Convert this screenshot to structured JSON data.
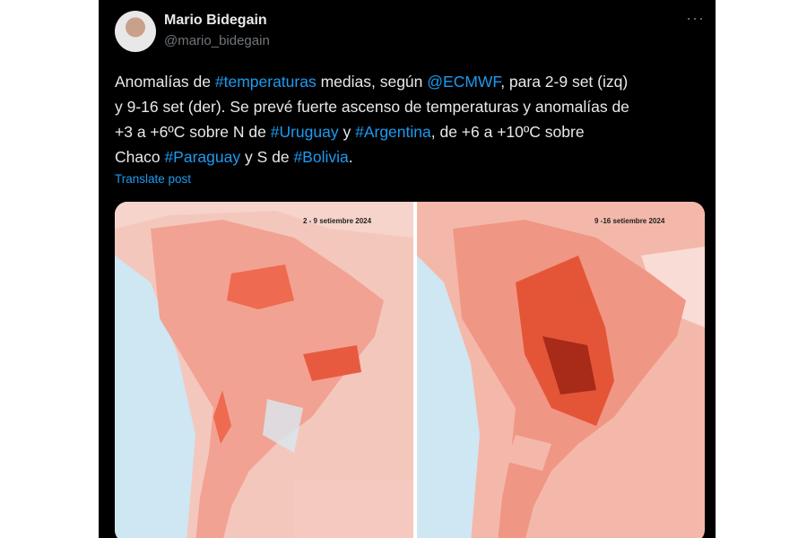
{
  "author": {
    "name": "Mario Bidegain",
    "handle": "@mario_bidegain"
  },
  "post": {
    "lines": [
      [
        "Anomalías de ",
        "#temperaturas",
        " medias, según ",
        "@ECMWF",
        ", para 2-9 set (izq)"
      ],
      [
        "y 9-16 set (der). Se prevé fuerte ascenso de temperaturas y anomalías de"
      ],
      [
        "+3 a +6ºC sobre N de ",
        "#Uruguay",
        " y ",
        "#Argentina",
        ", de +6 a +10ºC sobre"
      ],
      [
        "Chaco ",
        "#Paraguay",
        " y S de ",
        "#Bolivia",
        "."
      ]
    ],
    "translate": "Translate post"
  },
  "maps": [
    {
      "label": "2 - 9 setiembre 2024"
    },
    {
      "label": "9 -16 setiembre 2024"
    }
  ]
}
